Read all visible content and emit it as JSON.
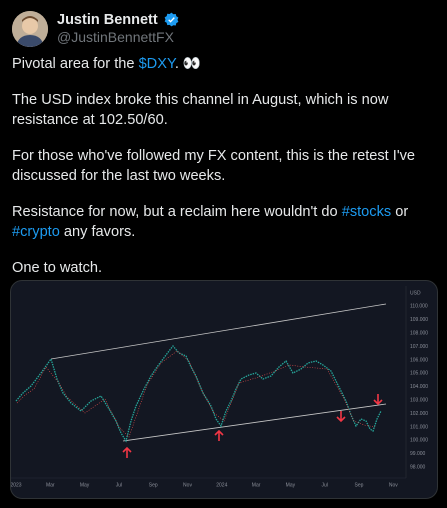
{
  "author": {
    "name": "Justin Bennett",
    "handle": "@JustinBennettFX"
  },
  "tweet": {
    "paragraphs": [
      [
        {
          "text": "Pivotal area for the "
        },
        {
          "text": "$DXY",
          "link": true
        },
        {
          "text": ". 👀"
        }
      ],
      [
        {
          "text": "The USD index broke this channel in August, which is now resistance at 102.50/60."
        }
      ],
      [
        {
          "text": "For those who've followed my FX content, this is the retest I've discussed for the last two weeks."
        }
      ],
      [
        {
          "text": "Resistance for now, but a reclaim here wouldn't do "
        },
        {
          "text": "#stocks",
          "link": true
        },
        {
          "text": " or "
        },
        {
          "text": "#crypto",
          "link": true
        },
        {
          "text": " any favors."
        }
      ],
      [
        {
          "text": "One to watch."
        }
      ]
    ]
  },
  "image": {
    "x_labels": [
      "2023",
      "Mar",
      "May",
      "Jul",
      "Sep",
      "Nov",
      "2024",
      "Mar",
      "May",
      "Jul",
      "Sep",
      "Nov"
    ],
    "y_labels": [
      "USD",
      "110.000",
      "109.000",
      "108.000",
      "107.000",
      "106.000",
      "105.000",
      "104.000",
      "103.000",
      "102.000",
      "101.000",
      "100.000",
      "99.000",
      "98.000"
    ]
  }
}
